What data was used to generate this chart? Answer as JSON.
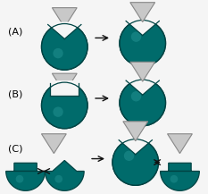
{
  "teal_color": "#006B6B",
  "teal_dark": "#004444",
  "gray_triangle": "#c8c8c8",
  "gray_edge": "#888888",
  "arrow_color": "#111111",
  "bg_color": "#f5f5f5",
  "label_A": "(A)",
  "label_B": "(B)",
  "label_C": "(C)",
  "label_fontsize": 8,
  "fig_width": 2.33,
  "fig_height": 2.17
}
